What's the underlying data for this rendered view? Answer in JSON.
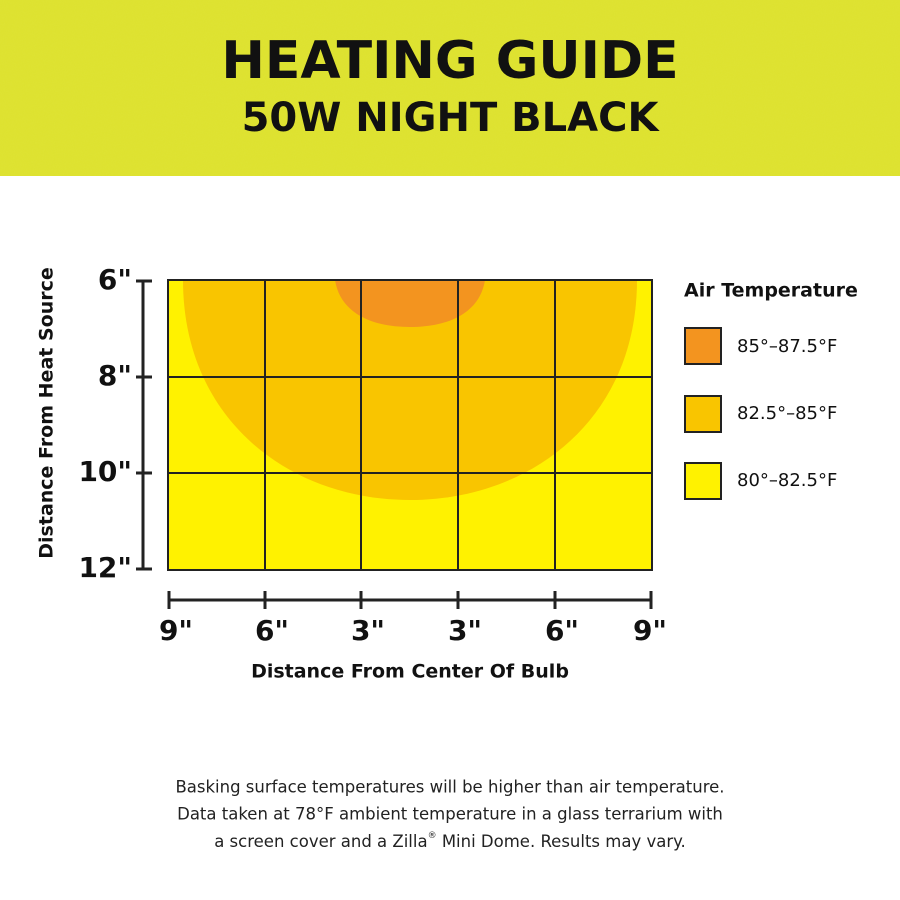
{
  "header": {
    "title": "HEATING GUIDE",
    "subtitle": "50W NIGHT BLACK"
  },
  "y_axis": {
    "title": "Distance From Heat Source",
    "ticks": [
      "6\"",
      "8\"",
      "10\"",
      "12\""
    ]
  },
  "x_axis": {
    "title": "Distance From Center Of Bulb",
    "ticks": [
      "9\"",
      "6\"",
      "3\"",
      "3\"",
      "6\"",
      "9\""
    ]
  },
  "legend": {
    "title": "Air Temperature",
    "items": [
      "85°–87.5°F",
      "82.5°–85°F",
      "80°–82.5°F"
    ]
  },
  "footnote": {
    "lines": [
      "Basking surface temperatures will be higher than air temperature.",
      "Data taken at 78°F ambient temperature in a glass terrarium with"
    ],
    "last_line": [
      "a screen cover and a Zilla",
      "®",
      " Mini Dome. Results may vary."
    ]
  }
}
